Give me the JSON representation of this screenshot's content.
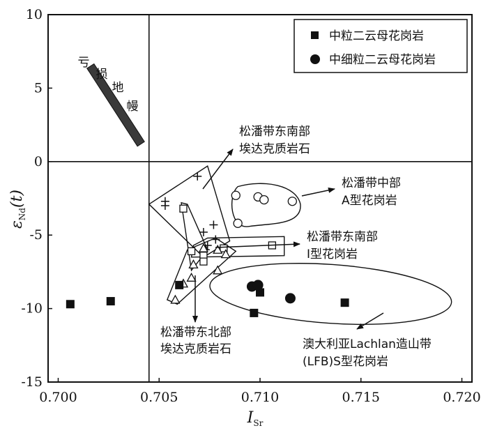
{
  "chart_data": {
    "type": "scatter",
    "title": "",
    "xlabel": "I",
    "xlabel_sub": "Sr",
    "ylabel": "ε",
    "ylabel_sub": "Nd",
    "ylabel_suffix": "(t)",
    "xlim": [
      0.6995,
      0.7205
    ],
    "ylim": [
      -15,
      10
    ],
    "x_ticks": [
      0.7,
      0.705,
      0.71,
      0.715,
      0.72
    ],
    "x_tick_labels": [
      "0.700",
      "0.705",
      "0.710",
      "0.715",
      "0.720"
    ],
    "y_ticks": [
      10,
      5,
      0,
      -5,
      -10,
      -15
    ],
    "y_tick_labels": [
      "10",
      "5",
      "0",
      "-5",
      "-10",
      "-15"
    ],
    "reference_lines": {
      "x": 0.7045,
      "y": 0
    },
    "legend_position": "top-right",
    "series": [
      {
        "name": "中粒二云母花岗岩",
        "marker": "square",
        "points": [
          [
            0.7006,
            -9.7
          ],
          [
            0.7026,
            -9.5
          ],
          [
            0.706,
            -8.4
          ],
          [
            0.7097,
            -10.3
          ],
          [
            0.71,
            -8.9
          ],
          [
            0.7142,
            -9.6
          ]
        ]
      },
      {
        "name": "中细粒二云母花岗岩",
        "marker": "circle",
        "points": [
          [
            0.7096,
            -8.5
          ],
          [
            0.7099,
            -8.4
          ],
          [
            0.7115,
            -9.3
          ]
        ]
      }
    ],
    "background_groups": [
      {
        "name": "松潘带东南部埃达克质岩石",
        "marker": "plus",
        "points": [
          [
            0.7053,
            -2.7
          ],
          [
            0.7053,
            -3.0
          ],
          [
            0.7069,
            -1.0
          ],
          [
            0.7072,
            -4.8
          ],
          [
            0.7074,
            -5.7
          ],
          [
            0.7077,
            -4.3
          ],
          [
            0.7078,
            -5.3
          ],
          [
            0.7073,
            -6.0
          ]
        ]
      },
      {
        "name": "松潘带中部A型花岗岩",
        "marker": "open-circle",
        "points": [
          [
            0.7088,
            -2.3
          ],
          [
            0.7089,
            -4.2
          ],
          [
            0.7099,
            -2.4
          ],
          [
            0.7102,
            -2.6
          ],
          [
            0.7116,
            -2.7
          ]
        ]
      },
      {
        "name": "松潘带东南部I型花岗岩",
        "marker": "open-square",
        "points": [
          [
            0.7062,
            -3.2
          ],
          [
            0.7066,
            -6.1
          ],
          [
            0.7072,
            -6.4
          ],
          [
            0.7072,
            -6.8
          ],
          [
            0.7082,
            -5.9
          ],
          [
            0.7106,
            -5.7
          ]
        ]
      },
      {
        "name": "松潘带东北部埃达克质岩石",
        "marker": "open-triangle",
        "points": [
          [
            0.7058,
            -9.4
          ],
          [
            0.7062,
            -8.3
          ],
          [
            0.7066,
            -7.9
          ],
          [
            0.7067,
            -7.0
          ],
          [
            0.7072,
            -5.9
          ],
          [
            0.7079,
            -6.0
          ],
          [
            0.7079,
            -7.4
          ],
          [
            0.7083,
            -6.3
          ]
        ]
      }
    ],
    "mantle_band": {
      "label": "亏损地幔",
      "from": [
        0.7016,
        6.5
      ],
      "to": [
        0.7041,
        1.2
      ]
    },
    "annotations": [
      {
        "id": "se-adakite",
        "lines": [
          "松潘带东南部",
          "埃达克质岩石"
        ]
      },
      {
        "id": "central-a",
        "lines": [
          "松潘带中部",
          "A型花岗岩"
        ]
      },
      {
        "id": "se-i",
        "lines": [
          "松潘带东南部",
          "Ⅰ型花岗岩"
        ]
      },
      {
        "id": "ne-adakite",
        "lines": [
          "松潘带东北部",
          "埃达克质岩石"
        ]
      },
      {
        "id": "lfb",
        "lines": [
          "澳大利亚Lachlan造山带",
          "(LFB)S型花岗岩"
        ]
      }
    ]
  }
}
